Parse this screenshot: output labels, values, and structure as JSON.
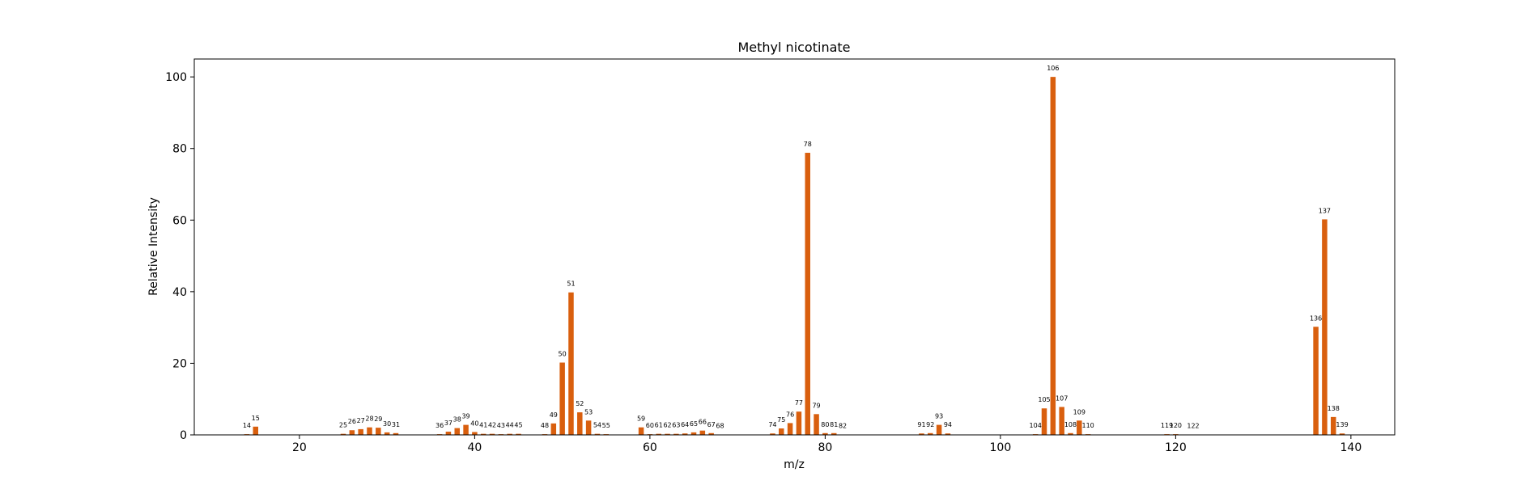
{
  "chart_data": {
    "type": "bar",
    "title": "Methyl nicotinate",
    "xlabel": "m/z",
    "ylabel": "Relative Intensity",
    "xlim": [
      8,
      145
    ],
    "ylim": [
      0,
      105
    ],
    "xticks": [
      20,
      40,
      60,
      80,
      100,
      120,
      140
    ],
    "yticks": [
      0,
      20,
      40,
      60,
      80,
      100
    ],
    "bar_color": "#d95f0e",
    "grid": false,
    "x": [
      14,
      15,
      25,
      26,
      27,
      28,
      29,
      30,
      31,
      36,
      37,
      38,
      39,
      40,
      41,
      42,
      43,
      44,
      45,
      48,
      49,
      50,
      51,
      52,
      53,
      54,
      55,
      59,
      60,
      61,
      62,
      63,
      64,
      65,
      66,
      67,
      68,
      74,
      75,
      76,
      77,
      78,
      79,
      80,
      81,
      82,
      91,
      92,
      93,
      94,
      104,
      105,
      106,
      107,
      108,
      109,
      110,
      119,
      120,
      122,
      136,
      137,
      138,
      139
    ],
    "values": [
      0.2,
      2.3,
      0.3,
      1.3,
      1.6,
      2.1,
      2.0,
      0.7,
      0.5,
      0.2,
      0.9,
      1.9,
      2.8,
      0.8,
      0.3,
      0.3,
      0.2,
      0.3,
      0.3,
      0.2,
      3.2,
      20.2,
      39.8,
      6.3,
      4.0,
      0.3,
      0.2,
      2.1,
      0.2,
      0.3,
      0.3,
      0.3,
      0.4,
      0.7,
      1.2,
      0.5,
      0.1,
      0.4,
      1.8,
      3.3,
      6.5,
      78.8,
      5.8,
      0.5,
      0.5,
      0.1,
      0.4,
      0.5,
      2.8,
      0.4,
      0.2,
      7.4,
      100.0,
      7.8,
      0.5,
      4.0,
      0.2,
      0.2,
      0.2,
      0.1,
      30.2,
      60.2,
      5.0,
      0.4
    ]
  }
}
